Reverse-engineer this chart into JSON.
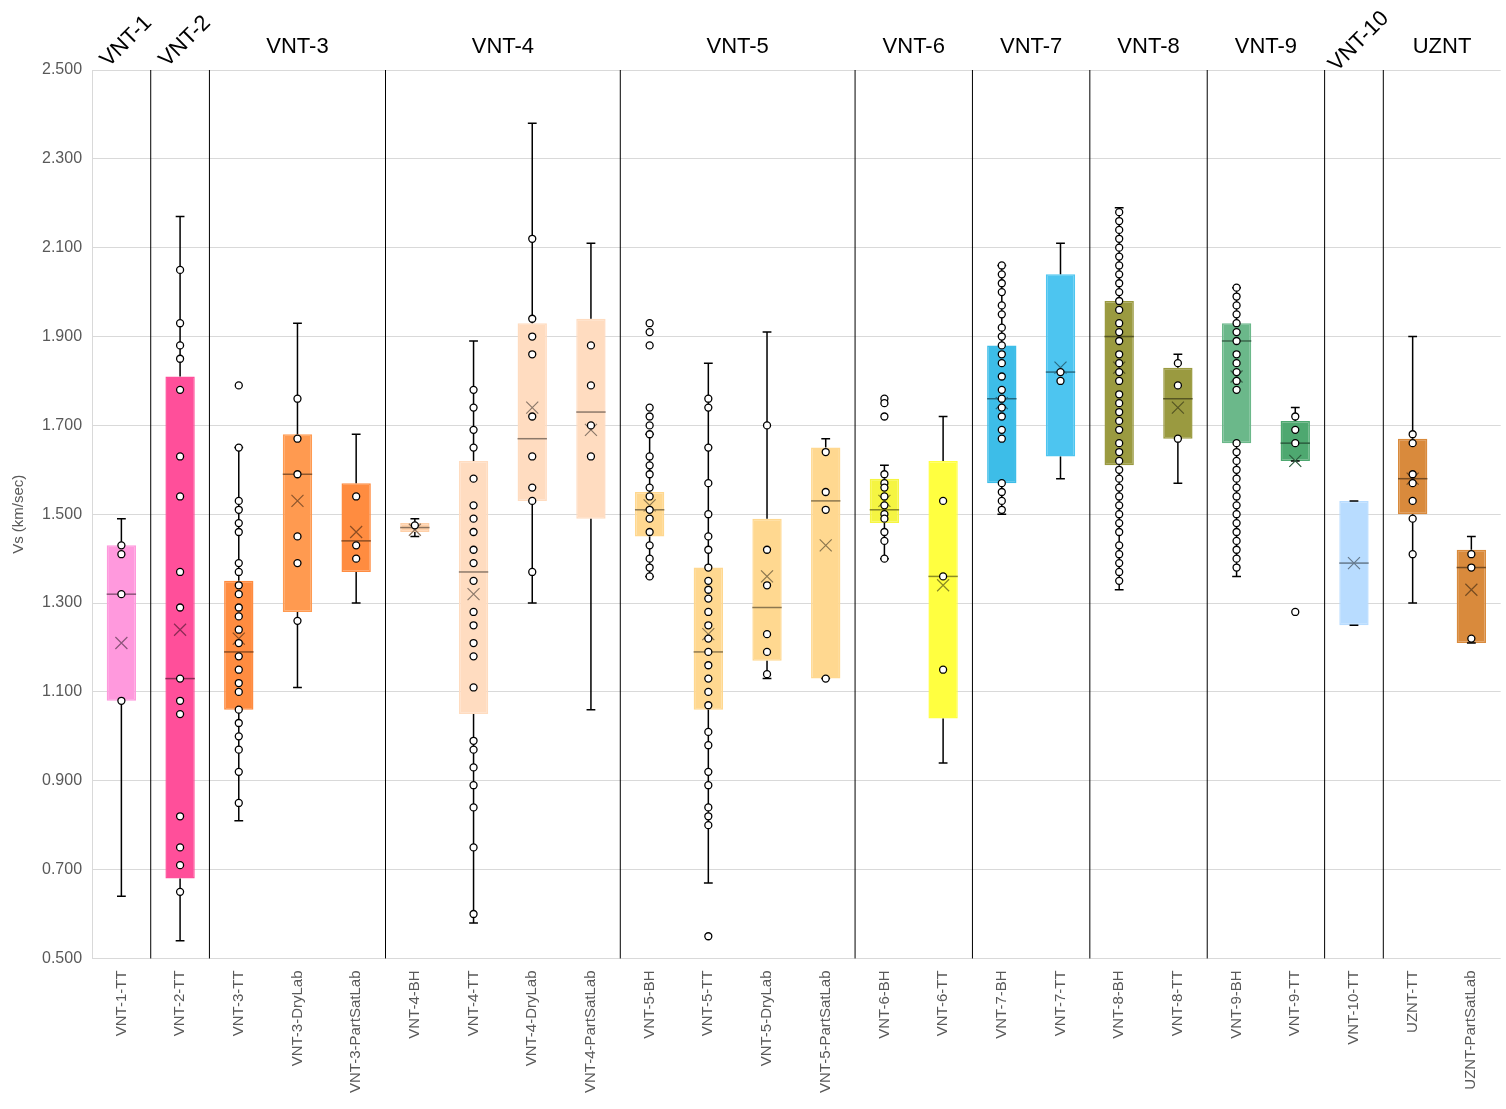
{
  "chart_data": {
    "type": "box",
    "ylabel": "Vs (km/sec)",
    "categories": [
      "VNT-1-TT",
      "VNT-2-TT",
      "VNT-3-TT",
      "VNT-3-DryLab",
      "VNT-3-PartSatLab",
      "VNT-4-BH",
      "VNT-4-TT",
      "VNT-4-DryLab",
      "VNT-4-PartSatLab",
      "VNT-5-BH",
      "VNT-5-TT",
      "VNT-5-DryLab",
      "VNT-5-PartSatLab",
      "VNT-6-BH",
      "VNT-6-TT",
      "VNT-7-BH",
      "VNT-7-TT",
      "VNT-8-BH",
      "VNT-8-TT",
      "VNT-9-BH",
      "VNT-9-TT",
      "VNT-10-TT",
      "UZNT-TT",
      "UZNT-PartSatLab"
    ],
    "boxes": [
      {
        "low": 0.64,
        "q1": 1.08,
        "median": 1.32,
        "q3": 1.43,
        "high": 1.49,
        "mean": 1.21
      },
      {
        "low": 0.54,
        "q1": 0.68,
        "median": 1.13,
        "q3": 1.81,
        "high": 2.17,
        "mean": 1.24
      },
      {
        "low": 0.81,
        "q1": 1.06,
        "median": 1.19,
        "q3": 1.35,
        "high": 1.65,
        "mean": 1.22
      },
      {
        "low": 1.11,
        "q1": 1.28,
        "median": 1.59,
        "q3": 1.68,
        "high": 1.93,
        "mean": 1.53
      },
      {
        "low": 1.3,
        "q1": 1.37,
        "median": 1.44,
        "q3": 1.57,
        "high": 1.68,
        "mean": 1.46
      },
      {
        "low": 1.45,
        "q1": 1.46,
        "median": 1.47,
        "q3": 1.48,
        "high": 1.49,
        "mean": 1.465
      },
      {
        "low": 0.58,
        "q1": 1.05,
        "median": 1.37,
        "q3": 1.62,
        "high": 1.89,
        "mean": 1.32
      },
      {
        "low": 1.3,
        "q1": 1.53,
        "median": 1.67,
        "q3": 1.93,
        "high": 2.38,
        "mean": 1.74
      },
      {
        "low": 1.06,
        "q1": 1.49,
        "median": 1.73,
        "q3": 1.94,
        "high": 2.11,
        "mean": 1.69
      },
      {
        "low": 1.36,
        "q1": 1.45,
        "median": 1.51,
        "q3": 1.55,
        "high": 1.68,
        "mean": 1.52
      },
      {
        "low": 0.67,
        "q1": 1.06,
        "median": 1.19,
        "q3": 1.38,
        "high": 1.84,
        "mean": 1.23
      },
      {
        "low": 1.13,
        "q1": 1.17,
        "median": 1.29,
        "q3": 1.49,
        "high": 1.91,
        "mean": 1.36
      },
      {
        "low": 1.13,
        "q1": 1.13,
        "median": 1.53,
        "q3": 1.65,
        "high": 1.67,
        "mean": 1.43
      },
      {
        "low": 1.4,
        "q1": 1.48,
        "median": 1.51,
        "q3": 1.58,
        "high": 1.61,
        "mean": 1.53
      },
      {
        "low": 0.94,
        "q1": 1.04,
        "median": 1.36,
        "q3": 1.62,
        "high": 1.72,
        "mean": 1.34
      },
      {
        "low": 1.5,
        "q1": 1.57,
        "median": 1.76,
        "q3": 1.88,
        "high": 2.06,
        "mean": 1.75
      },
      {
        "low": 1.58,
        "q1": 1.63,
        "median": 1.82,
        "q3": 2.04,
        "high": 2.11,
        "mean": 1.83
      },
      {
        "low": 1.33,
        "q1": 1.61,
        "median": 1.9,
        "q3": 1.98,
        "high": 2.19,
        "mean": 1.83
      },
      {
        "low": 1.57,
        "q1": 1.67,
        "median": 1.76,
        "q3": 1.83,
        "high": 1.86,
        "mean": 1.74
      },
      {
        "low": 1.36,
        "q1": 1.66,
        "median": 1.89,
        "q3": 1.93,
        "high": 2.01,
        "mean": 1.81
      },
      {
        "low": 1.62,
        "q1": 1.62,
        "median": 1.66,
        "q3": 1.71,
        "high": 1.74,
        "mean": 1.62
      },
      {
        "low": 1.25,
        "q1": 1.25,
        "median": 1.39,
        "q3": 1.53,
        "high": 1.53,
        "mean": 1.39
      },
      {
        "low": 1.3,
        "q1": 1.5,
        "median": 1.58,
        "q3": 1.67,
        "high": 1.9,
        "mean": 1.58
      },
      {
        "low": 1.21,
        "q1": 1.21,
        "median": 1.38,
        "q3": 1.42,
        "high": 1.45,
        "mean": 1.33
      }
    ],
    "colors": [
      "#ff99dd",
      "#ff4f9a",
      "#ff8c40",
      "#ff9a50",
      "#ff8c40",
      "#ffd0a8",
      "#ffdcc0",
      "#ffdcc0",
      "#ffdcc0",
      "#ffd890",
      "#ffd890",
      "#ffd890",
      "#ffd890",
      "#f5f542",
      "#ffff40",
      "#3dbde8",
      "#4dc5f0",
      "#9a9a40",
      "#9a9a40",
      "#6bb88a",
      "#4ea870",
      "#b8dcff",
      "#d98a3c",
      "#d98a3c"
    ],
    "ylim": [
      0.5,
      2.5
    ],
    "yticks": [
      {
        "value": 0.5,
        "label": "0.500"
      },
      {
        "value": 0.7,
        "label": "0.700"
      },
      {
        "value": 0.9,
        "label": "0.900"
      },
      {
        "value": 1.1,
        "label": "1.100"
      },
      {
        "value": 1.3,
        "label": "1.300"
      },
      {
        "value": 1.5,
        "label": "1.500"
      },
      {
        "value": 1.7,
        "label": "1.700"
      },
      {
        "value": 1.9,
        "label": "1.900"
      },
      {
        "value": 2.1,
        "label": "2.100"
      },
      {
        "value": 2.3,
        "label": "2.300"
      },
      {
        "value": 2.5,
        "label": "2.500"
      }
    ],
    "grid": "y",
    "legend": false,
    "marker": "circle",
    "annotations": [
      "VNT-1",
      "VNT-2",
      "VNT-3",
      "VNT-4",
      "VNT-5",
      "VNT-6",
      "VNT-7",
      "VNT-8",
      "VNT-9",
      "VNT-10",
      "UZNT"
    ],
    "series": [
      {
        "type": "scatter",
        "color": "#000000",
        "x": [
          "VNT-1-TT",
          "VNT-1-TT",
          "VNT-1-TT",
          "VNT-1-TT",
          "VNT-2-TT",
          "VNT-2-TT",
          "VNT-2-TT",
          "VNT-2-TT",
          "VNT-2-TT",
          "VNT-2-TT",
          "VNT-2-TT",
          "VNT-2-TT",
          "VNT-2-TT",
          "VNT-2-TT",
          "VNT-2-TT",
          "VNT-2-TT",
          "VNT-2-TT",
          "VNT-2-TT",
          "VNT-2-TT",
          "VNT-2-TT",
          "VNT-3-TT",
          "VNT-3-TT",
          "VNT-3-TT",
          "VNT-3-TT",
          "VNT-3-TT",
          "VNT-3-TT",
          "VNT-3-TT",
          "VNT-3-TT",
          "VNT-3-TT",
          "VNT-3-TT",
          "VNT-3-TT",
          "VNT-3-TT",
          "VNT-3-TT",
          "VNT-3-TT",
          "VNT-3-TT",
          "VNT-3-TT",
          "VNT-3-TT",
          "VNT-3-TT",
          "VNT-3-TT",
          "VNT-3-TT",
          "VNT-3-TT",
          "VNT-3-TT",
          "VNT-3-TT",
          "VNT-3-TT",
          "VNT-3-DryLab",
          "VNT-3-DryLab",
          "VNT-3-DryLab",
          "VNT-3-DryLab",
          "VNT-3-DryLab",
          "VNT-3-DryLab",
          "VNT-3-PartSatLab",
          "VNT-3-PartSatLab",
          "VNT-3-PartSatLab",
          "VNT-4-BH",
          "VNT-4-TT",
          "VNT-4-TT",
          "VNT-4-TT",
          "VNT-4-TT",
          "VNT-4-TT",
          "VNT-4-TT",
          "VNT-4-TT",
          "VNT-4-TT",
          "VNT-4-TT",
          "VNT-4-TT",
          "VNT-4-TT",
          "VNT-4-TT",
          "VNT-4-TT",
          "VNT-4-TT",
          "VNT-4-TT",
          "VNT-4-TT",
          "VNT-4-TT",
          "VNT-4-TT",
          "VNT-4-TT",
          "VNT-4-TT",
          "VNT-4-TT",
          "VNT-4-TT",
          "VNT-4-TT",
          "VNT-4-DryLab",
          "VNT-4-DryLab",
          "VNT-4-DryLab",
          "VNT-4-DryLab",
          "VNT-4-DryLab",
          "VNT-4-DryLab",
          "VNT-4-DryLab",
          "VNT-4-DryLab",
          "VNT-4-DryLab",
          "VNT-4-PartSatLab",
          "VNT-4-PartSatLab",
          "VNT-4-PartSatLab",
          "VNT-4-PartSatLab",
          "VNT-5-BH",
          "VNT-5-BH",
          "VNT-5-BH",
          "VNT-5-BH",
          "VNT-5-BH",
          "VNT-5-BH",
          "VNT-5-BH",
          "VNT-5-BH",
          "VNT-5-BH",
          "VNT-5-BH",
          "VNT-5-BH",
          "VNT-5-BH",
          "VNT-5-BH",
          "VNT-5-BH",
          "VNT-5-BH",
          "VNT-5-BH",
          "VNT-5-BH",
          "VNT-5-BH",
          "VNT-5-BH",
          "VNT-5-TT",
          "VNT-5-TT",
          "VNT-5-TT",
          "VNT-5-TT",
          "VNT-5-TT",
          "VNT-5-TT",
          "VNT-5-TT",
          "VNT-5-TT",
          "VNT-5-TT",
          "VNT-5-TT",
          "VNT-5-TT",
          "VNT-5-TT",
          "VNT-5-TT",
          "VNT-5-TT",
          "VNT-5-TT",
          "VNT-5-TT",
          "VNT-5-TT",
          "VNT-5-TT",
          "VNT-5-TT",
          "VNT-5-TT",
          "VNT-5-TT",
          "VNT-5-TT",
          "VNT-5-TT",
          "VNT-5-TT",
          "VNT-5-TT",
          "VNT-5-TT",
          "VNT-5-TT",
          "VNT-5-DryLab",
          "VNT-5-DryLab",
          "VNT-5-DryLab",
          "VNT-5-DryLab",
          "VNT-5-DryLab",
          "VNT-5-DryLab",
          "VNT-5-PartSatLab",
          "VNT-5-PartSatLab",
          "VNT-5-PartSatLab",
          "VNT-5-PartSatLab",
          "VNT-6-BH",
          "VNT-6-BH",
          "VNT-6-BH",
          "VNT-6-BH",
          "VNT-6-BH",
          "VNT-6-BH",
          "VNT-6-BH",
          "VNT-6-BH",
          "VNT-6-BH",
          "VNT-6-BH",
          "VNT-6-BH",
          "VNT-6-BH",
          "VNT-6-BH",
          "VNT-6-TT",
          "VNT-6-TT",
          "VNT-6-TT",
          "VNT-7-BH",
          "VNT-7-BH",
          "VNT-7-BH",
          "VNT-7-BH",
          "VNT-7-BH",
          "VNT-7-BH",
          "VNT-7-BH",
          "VNT-7-BH",
          "VNT-7-BH",
          "VNT-7-BH",
          "VNT-7-BH",
          "VNT-7-BH",
          "VNT-7-BH",
          "VNT-7-BH",
          "VNT-7-BH",
          "VNT-7-BH",
          "VNT-7-BH",
          "VNT-7-BH",
          "VNT-7-BH",
          "VNT-7-BH",
          "VNT-7-BH",
          "VNT-7-BH",
          "VNT-7-TT",
          "VNT-7-TT",
          "VNT-8-BH",
          "VNT-8-BH",
          "VNT-8-BH",
          "VNT-8-BH",
          "VNT-8-BH",
          "VNT-8-BH",
          "VNT-8-BH",
          "VNT-8-BH",
          "VNT-8-BH",
          "VNT-8-BH",
          "VNT-8-BH",
          "VNT-8-BH",
          "VNT-8-BH",
          "VNT-8-BH",
          "VNT-8-BH",
          "VNT-8-BH",
          "VNT-8-BH",
          "VNT-8-BH",
          "VNT-8-BH",
          "VNT-8-BH",
          "VNT-8-BH",
          "VNT-8-BH",
          "VNT-8-BH",
          "VNT-8-BH",
          "VNT-8-BH",
          "VNT-8-BH",
          "VNT-8-BH",
          "VNT-8-BH",
          "VNT-8-BH",
          "VNT-8-BH",
          "VNT-8-BH",
          "VNT-8-BH",
          "VNT-8-BH",
          "VNT-8-BH",
          "VNT-8-BH",
          "VNT-8-BH",
          "VNT-8-BH",
          "VNT-8-BH",
          "VNT-8-BH",
          "VNT-8-BH",
          "VNT-8-TT",
          "VNT-8-TT",
          "VNT-8-TT",
          "VNT-9-BH",
          "VNT-9-BH",
          "VNT-9-BH",
          "VNT-9-BH",
          "VNT-9-BH",
          "VNT-9-BH",
          "VNT-9-BH",
          "VNT-9-BH",
          "VNT-9-BH",
          "VNT-9-BH",
          "VNT-9-BH",
          "VNT-9-BH",
          "VNT-9-BH",
          "VNT-9-BH",
          "VNT-9-BH",
          "VNT-9-BH",
          "VNT-9-BH",
          "VNT-9-BH",
          "VNT-9-BH",
          "VNT-9-BH",
          "VNT-9-BH",
          "VNT-9-BH",
          "VNT-9-BH",
          "VNT-9-BH",
          "VNT-9-BH",
          "VNT-9-BH",
          "VNT-9-BH",
          "VNT-9-TT",
          "VNT-9-TT",
          "VNT-9-TT",
          "VNT-9-TT",
          "UZNT-TT",
          "UZNT-TT",
          "UZNT-TT",
          "UZNT-TT",
          "UZNT-TT",
          "UZNT-TT",
          "UZNT-TT",
          "UZNT-PartSatLab",
          "UZNT-PartSatLab",
          "UZNT-PartSatLab"
        ],
        "values": [
          1.43,
          1.41,
          1.32,
          1.08,
          2.05,
          1.93,
          1.88,
          1.85,
          1.78,
          1.63,
          1.54,
          1.37,
          1.29,
          1.13,
          1.08,
          1.05,
          0.82,
          0.75,
          0.71,
          0.65,
          1.79,
          1.65,
          1.53,
          1.51,
          1.48,
          1.46,
          1.39,
          1.37,
          1.34,
          1.32,
          1.29,
          1.27,
          1.24,
          1.21,
          1.18,
          1.15,
          1.12,
          1.1,
          1.06,
          1.03,
          1.0,
          0.97,
          0.92,
          0.85,
          1.76,
          1.67,
          1.59,
          1.45,
          1.39,
          1.26,
          1.54,
          1.43,
          1.4,
          1.475,
          1.78,
          1.74,
          1.69,
          1.65,
          1.58,
          1.52,
          1.49,
          1.46,
          1.42,
          1.39,
          1.35,
          1.28,
          1.25,
          1.21,
          1.18,
          1.11,
          0.99,
          0.97,
          0.93,
          0.89,
          0.84,
          0.75,
          0.6,
          2.12,
          1.94,
          1.9,
          1.86,
          1.72,
          1.63,
          1.56,
          1.53,
          1.37,
          1.88,
          1.79,
          1.7,
          1.63,
          1.93,
          1.91,
          1.88,
          1.74,
          1.72,
          1.7,
          1.68,
          1.63,
          1.61,
          1.59,
          1.56,
          1.54,
          1.51,
          1.49,
          1.46,
          1.43,
          1.4,
          1.38,
          1.36,
          1.76,
          1.74,
          1.65,
          1.57,
          1.5,
          1.45,
          1.42,
          1.38,
          1.35,
          1.33,
          1.31,
          1.28,
          1.25,
          1.22,
          1.19,
          1.16,
          1.13,
          1.1,
          1.07,
          1.01,
          0.98,
          0.92,
          0.89,
          0.84,
          0.82,
          0.8,
          0.55,
          1.7,
          1.42,
          1.34,
          1.23,
          1.19,
          1.14,
          1.64,
          1.55,
          1.51,
          1.13,
          1.76,
          1.75,
          1.72,
          1.59,
          1.57,
          1.56,
          1.54,
          1.52,
          1.5,
          1.49,
          1.46,
          1.44,
          1.4,
          1.53,
          1.36,
          1.15,
          2.06,
          2.04,
          2.02,
          2.0,
          1.97,
          1.95,
          1.92,
          1.9,
          1.88,
          1.86,
          1.84,
          1.81,
          1.78,
          1.76,
          1.74,
          1.72,
          1.69,
          1.67,
          1.57,
          1.55,
          1.53,
          1.51,
          1.82,
          1.8,
          2.18,
          2.16,
          2.14,
          2.12,
          2.1,
          2.08,
          2.06,
          2.04,
          2.02,
          2.0,
          1.98,
          1.96,
          1.93,
          1.91,
          1.89,
          1.86,
          1.84,
          1.82,
          1.8,
          1.77,
          1.75,
          1.73,
          1.71,
          1.69,
          1.66,
          1.64,
          1.62,
          1.6,
          1.58,
          1.56,
          1.54,
          1.52,
          1.5,
          1.48,
          1.46,
          1.43,
          1.41,
          1.39,
          1.37,
          1.35,
          1.84,
          1.79,
          1.67,
          2.01,
          1.99,
          1.97,
          1.95,
          1.93,
          1.91,
          1.89,
          1.86,
          1.84,
          1.82,
          1.8,
          1.78,
          1.66,
          1.64,
          1.62,
          1.6,
          1.58,
          1.56,
          1.54,
          1.52,
          1.5,
          1.48,
          1.46,
          1.44,
          1.42,
          1.4,
          1.38,
          1.72,
          1.69,
          1.66,
          1.28,
          1.68,
          1.66,
          1.59,
          1.57,
          1.53,
          1.49,
          1.41,
          1.41,
          1.38,
          1.22
        ]
      }
    ]
  }
}
